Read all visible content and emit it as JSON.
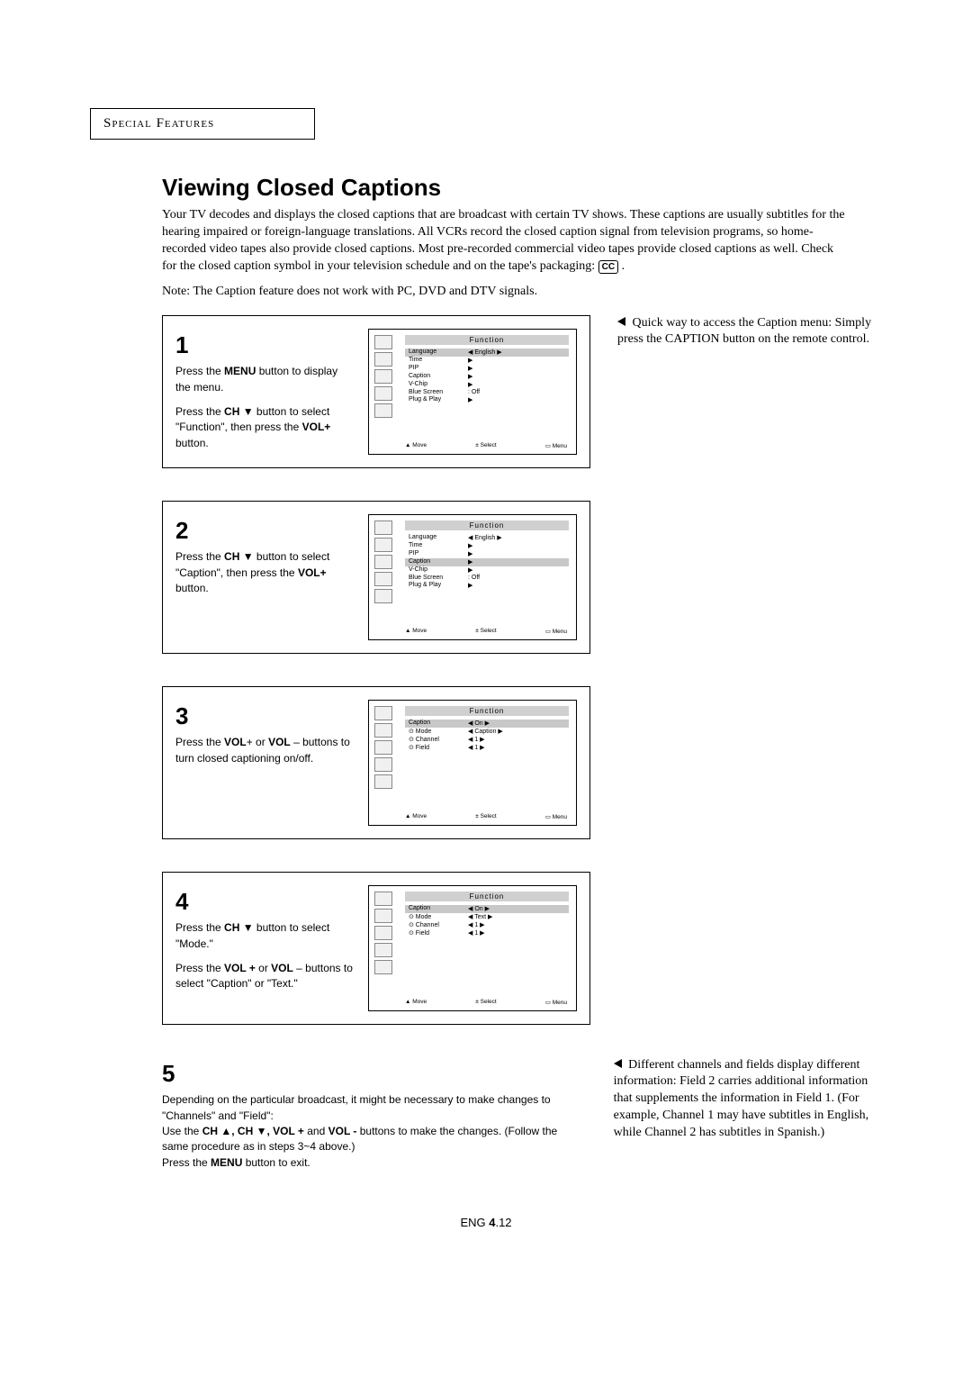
{
  "header": "Special Features",
  "title": "Viewing Closed Captions",
  "intro": "Your TV decodes and displays the closed captions that are broadcast with certain TV shows. These captions are usually subtitles for the hearing impaired or foreign-language translations. All VCRs record the closed caption signal from television programs, so home-recorded video tapes also provide closed captions. Most pre-recorded commercial video tapes provide closed captions as well. Check for the closed caption symbol in your television schedule and on the tape's packaging: ",
  "cc": "CC",
  "introEnd": " .",
  "note": "Note: The Caption feature does not work with PC, DVD and DTV signals.",
  "quickTip": " Quick way to access the Caption menu: Simply press the CAPTION button on the remote control.",
  "steps": {
    "s1": {
      "num": "1",
      "p1a": "Press the ",
      "p1b": "MENU",
      "p1c": " button to display the menu.",
      "p2a": "Press the ",
      "p2b": "CH ▼",
      "p2c": " button to select \"Function\", then press the ",
      "p2d": "VOL+",
      "p2e": " button."
    },
    "s2": {
      "num": "2",
      "p1a": "Press the ",
      "p1b": "CH ▼",
      "p1c": " button to select \"Caption\", then press the ",
      "p1d": "VOL+",
      "p1e": " button."
    },
    "s3": {
      "num": "3",
      "p1a": "Press the ",
      "p1b": "VOL",
      "p1c": "+ or ",
      "p1d": "VOL",
      "p1e": " – buttons to turn closed captioning on/off."
    },
    "s4": {
      "num": "4",
      "p1a": "Press the ",
      "p1b": "CH ▼",
      "p1c": " button to select \"Mode.\"",
      "p2a": "Press the ",
      "p2b": "VOL +",
      "p2c": " or ",
      "p2d": "VOL",
      "p2e": " – buttons to select \"Caption\"  or \"Text.\""
    },
    "s5": {
      "num": "5",
      "line1": "Depending on the particular broadcast, it might be necessary to make changes to \"Channels\" and \"Field\":",
      "line2a": "Use the ",
      "line2b": "CH ▲, CH ▼,  VOL +",
      "line2c": " and ",
      "line2d": "VOL -",
      "line2e": " buttons to make the changes. (Follow the same procedure as in steps 3~4 above.)",
      "line3a": "Press the ",
      "line3b": "MENU",
      "line3c": " button to exit."
    }
  },
  "diffNote": "  Different channels and fields display different information: Field 2 carries additional information that supplements the information in Field 1. (For example, Channel 1 may have subtitles in English, while Channel 2 has subtitles in Spanish.)",
  "osd": {
    "title": "Function",
    "listA": [
      {
        "k": "Language",
        "v": "◀ English ▶",
        "hl": true
      },
      {
        "k": "Time",
        "v": "▶"
      },
      {
        "k": "PIP",
        "v": "▶"
      },
      {
        "k": "Caption",
        "v": "▶"
      },
      {
        "k": "V-Chip",
        "v": "▶"
      },
      {
        "k": "Blue Screen",
        "v": ": Off"
      },
      {
        "k": "Plug & Play",
        "v": "▶"
      }
    ],
    "listB": [
      {
        "k": "Language",
        "v": "◀ English ▶"
      },
      {
        "k": "Time",
        "v": "▶"
      },
      {
        "k": "PIP",
        "v": "▶"
      },
      {
        "k": "Caption",
        "v": "▶",
        "hl": true
      },
      {
        "k": "V-Chip",
        "v": "▶"
      },
      {
        "k": "Blue Screen",
        "v": ": Off"
      },
      {
        "k": "Plug & Play",
        "v": "▶"
      }
    ],
    "listC": [
      {
        "k": "Caption",
        "v": "◀    On    ▶",
        "hl": true
      },
      {
        "k": "⊙ Mode",
        "v": "◀  Caption  ▶"
      },
      {
        "k": "⊙ Channel",
        "v": "◀ 1 ▶"
      },
      {
        "k": "⊙ Field",
        "v": "◀ 1 ▶"
      }
    ],
    "listD": [
      {
        "k": "Caption",
        "v": "◀    On    ▶",
        "hl": true
      },
      {
        "k": "⊙ Mode",
        "v": "◀   Text   ▶"
      },
      {
        "k": "⊙ Channel",
        "v": "◀ 1 ▶"
      },
      {
        "k": "⊙ Field",
        "v": "◀ 1 ▶"
      }
    ],
    "foot": {
      "a": "▲ Move",
      "b": "± Select",
      "c": "▭ Menu"
    }
  },
  "footer": {
    "a": "ENG ",
    "b": "4",
    "c": ".12"
  }
}
